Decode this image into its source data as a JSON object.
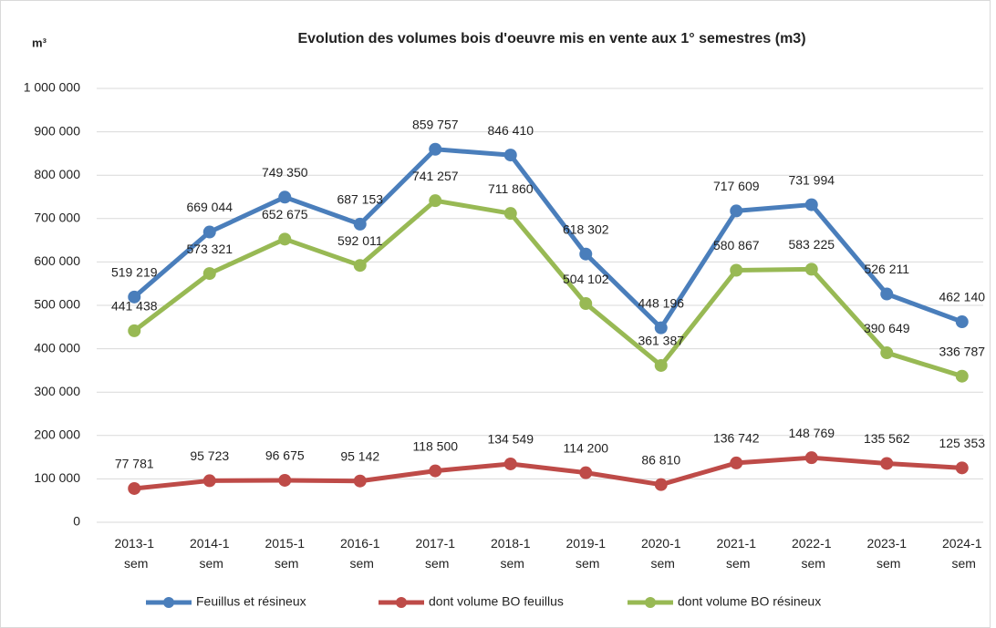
{
  "chart_data": {
    "type": "line",
    "title": "Evolution des volumes bois d'oeuvre mis en vente aux 1° semestres (m3)",
    "y_label": "m³",
    "categories": [
      "2013-1 sem",
      "2014-1 sem",
      "2015-1 sem",
      "2016-1 sem",
      "2017-1 sem",
      "2018-1 sem",
      "2019-1 sem",
      "2020-1 sem",
      "2021-1 sem",
      "2022-1 sem",
      "2023-1 sem",
      "2024-1 sem"
    ],
    "series": [
      {
        "name": "Feuillus et résineux",
        "color": "#4a7ebb",
        "values": [
          519219,
          669044,
          749350,
          687153,
          859757,
          846410,
          618302,
          448196,
          717609,
          731994,
          526211,
          462140
        ],
        "value_labels": [
          "519 219",
          "669 044",
          "749 350",
          "687 153",
          "859 757",
          "846 410",
          "618 302",
          "448 196",
          "717 609",
          "731 994",
          "526 211",
          "462 140"
        ]
      },
      {
        "name": "dont volume BO feuillus",
        "color": "#be4b48",
        "values": [
          77781,
          95723,
          96675,
          95142,
          118500,
          134549,
          114200,
          86810,
          136742,
          148769,
          135562,
          125353
        ],
        "value_labels": [
          "77 781",
          "95 723",
          "96 675",
          "95 142",
          "118 500",
          "134 549",
          "114 200",
          "86 810",
          "136 742",
          "148 769",
          "135 562",
          "125 353"
        ]
      },
      {
        "name": "dont volume BO résineux",
        "color": "#98b954",
        "values": [
          441438,
          573321,
          652675,
          592011,
          741257,
          711860,
          504102,
          361387,
          580867,
          583225,
          390649,
          336787
        ],
        "value_labels": [
          "441 438",
          "573 321",
          "652 675",
          "592 011",
          "741 257",
          "711 860",
          "504 102",
          "361 387",
          "580 867",
          "583 225",
          "390 649",
          "336 787"
        ]
      }
    ],
    "ylim": [
      0,
      1000000
    ],
    "yticks": [
      0,
      {
        "value": 100000,
        "label": "100 000"
      },
      {
        "value": 200000,
        "label": "200 000"
      },
      {
        "value": 300000,
        "label": "300 000"
      },
      {
        "value": 400000,
        "label": "400 000"
      },
      {
        "value": 500000,
        "label": "500 000"
      },
      {
        "value": 600000,
        "label": "600 000"
      },
      {
        "value": 700000,
        "label": "700 000"
      },
      {
        "value": 800000,
        "label": "800 000"
      },
      {
        "value": 900000,
        "label": "900 000"
      },
      {
        "value": 1000000,
        "label": "1 000 000"
      }
    ],
    "grid": true
  }
}
